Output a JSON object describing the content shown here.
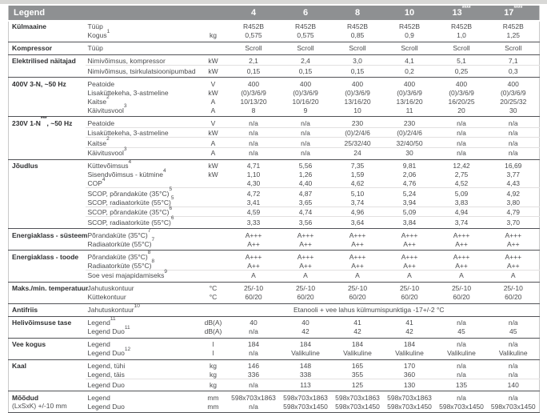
{
  "table": {
    "title": "Legend",
    "columns": [
      "4",
      "6",
      "8",
      "10",
      "13^****^",
      "17^****^"
    ],
    "sections": [
      {
        "group": "Külmaaine",
        "rows": [
          {
            "param": "Tüüp",
            "unit": "",
            "values": [
              "R452B",
              "R452B",
              "R452B",
              "R452B",
              "R452B",
              "R452B"
            ]
          },
          {
            "param": "Kogus^1^",
            "unit": "kg",
            "values": [
              "0,575",
              "0,575",
              "0,85",
              "0,9",
              "1,0",
              "1,25"
            ]
          }
        ]
      },
      {
        "group": "Kompressor",
        "rows": [
          {
            "param": "Tüüp",
            "unit": "",
            "values": [
              "Scroll",
              "Scroll",
              "Scroll",
              "Scroll",
              "Scroll",
              "Scroll"
            ]
          }
        ]
      },
      {
        "group": "Elektrilised näitajad",
        "rows": [
          {
            "param": "Nimivõimsus, kompressor",
            "unit": "kW",
            "values": [
              "2,1",
              "2,4",
              "3,0",
              "4,1",
              "5,1",
              "7,1"
            ]
          },
          {
            "param": "Nimivõimsus, tsirkulatsioonipumbad",
            "unit": "kW",
            "values": [
              "0,15",
              "0,15",
              "0,15",
              "0,2",
              "0,25",
              "0,3"
            ],
            "sep": true
          }
        ]
      },
      {
        "group": "400V 3-N, ~50 Hz",
        "rows": [
          {
            "param": "Peatoide",
            "unit": "V",
            "values": [
              "400",
              "400",
              "400",
              "400",
              "400",
              "400"
            ]
          },
          {
            "param": "Lisaküttekeha, 3-astmeline",
            "unit": "kW",
            "values": [
              "(0)/3/6/9",
              "(0)/3/6/9",
              "(0)/3/6/9",
              "(0)/3/6/9",
              "(0)/3/6/9",
              "(0)/3/6/9"
            ]
          },
          {
            "param": "Kaitse^2^",
            "unit": "A",
            "values": [
              "10/13/20",
              "10/16/20",
              "13/16/20",
              "13/16/20",
              "16/20/25",
              "20/25/32"
            ]
          },
          {
            "param": "Käivitusvool^3^",
            "unit": "A",
            "values": [
              "8",
              "9",
              "10",
              "11",
              "20",
              "30"
            ]
          }
        ]
      },
      {
        "group": "230V 1-N^***^, ~50 Hz",
        "rows": [
          {
            "param": "Peatoide",
            "unit": "V",
            "values": [
              "n/a",
              "n/a",
              "230",
              "230",
              "n/a",
              "n/a"
            ]
          },
          {
            "param": "Lisaküttekeha, 3-astmeline",
            "unit": "kW",
            "values": [
              "n/a",
              "n/a",
              "(0)/2/4/6",
              "(0)/2/4/6",
              "n/a",
              "n/a"
            ],
            "sep": true
          },
          {
            "param": "Kaitse^2^",
            "unit": "A",
            "values": [
              "n/a",
              "n/a",
              "25/32/40",
              "32/40/50",
              "n/a",
              "n/a"
            ],
            "sep": true
          },
          {
            "param": "Käivitusvool^3^",
            "unit": "A",
            "values": [
              "n/a",
              "n/a",
              "24",
              "30",
              "n/a",
              "n/a"
            ],
            "sep": true
          }
        ]
      },
      {
        "group": "Jõudlus",
        "rows": [
          {
            "param": "Küttevõimsus^4^",
            "unit": "kW",
            "values": [
              "4,71",
              "5,56",
              "7,35",
              "9,81",
              "12,42",
              "16,69"
            ]
          },
          {
            "param": "Sisendvõimsus - kütmine^4^",
            "unit": "kW",
            "values": [
              "1,10",
              "1,26",
              "1,59",
              "2,06",
              "2,75",
              "3,77"
            ]
          },
          {
            "param": "COP^4^",
            "unit": "",
            "values": [
              "4,30",
              "4,40",
              "4,62",
              "4,76",
              "4,52",
              "4,43"
            ]
          },
          {
            "param": "SCOP, põrandaküte (35°C)^5^",
            "unit": "",
            "values": [
              "4,72",
              "4,87",
              "5,10",
              "5,24",
              "5,09",
              "4,92"
            ],
            "sep": true
          },
          {
            "param": "SCOP, radiaatorküte (55°C)^5^",
            "unit": "",
            "values": [
              "3,41",
              "3,65",
              "3,74",
              "3,94",
              "3,83",
              "3,80"
            ]
          },
          {
            "param": "SCOP, põrandaküte (35°C)^6^",
            "unit": "",
            "values": [
              "4,59",
              "4,74",
              "4,96",
              "5,09",
              "4,94",
              "4,79"
            ],
            "sep": true
          },
          {
            "param": "SCOP, radiaatorküte (55°C)^6^",
            "unit": "",
            "values": [
              "3,33",
              "3,56",
              "3,64",
              "3,84",
              "3,74",
              "3,70"
            ],
            "sep": true
          }
        ]
      },
      {
        "group": "Energiaklass - süsteem",
        "rows": [
          {
            "param": "Põrandaküte (35°C)^7^",
            "unit": "",
            "values": [
              "A+++",
              "A+++",
              "A+++",
              "A+++",
              "A+++",
              "A+++"
            ]
          },
          {
            "param": "Radiaatorküte (55°C)^7^",
            "unit": "",
            "values": [
              "A++",
              "A++",
              "A++",
              "A++",
              "A++",
              "A++"
            ]
          }
        ]
      },
      {
        "group": "Energiaklass - toode",
        "rows": [
          {
            "param": "Põrandaküte (35°C)^8^",
            "unit": "",
            "values": [
              "A+++",
              "A+++",
              "A+++",
              "A+++",
              "A+++",
              "A+++"
            ]
          },
          {
            "param": "Radiaatorküte (55°C)^8^",
            "unit": "",
            "values": [
              "A++",
              "A++",
              "A++",
              "A++",
              "A++",
              "A++"
            ]
          },
          {
            "param": "Soe vesi majapidamiseks^9^",
            "unit": "",
            "values": [
              "A",
              "A",
              "A",
              "A",
              "A",
              "A"
            ],
            "sep": true
          }
        ]
      },
      {
        "group": "Maks./min. temperatuur",
        "rows": [
          {
            "param": "Jahutuskontuur",
            "unit": "°C",
            "values": [
              "25/-10",
              "25/-10",
              "25/-10",
              "25/-10",
              "25/-10",
              "25/-10"
            ]
          },
          {
            "param": "Küttekontuur",
            "unit": "°C",
            "values": [
              "60/20",
              "60/20",
              "60/20",
              "60/20",
              "60/20",
              "60/20"
            ]
          }
        ]
      },
      {
        "group": "Antifriis",
        "rows": [
          {
            "param": "Jahutuskontuur^10^",
            "unit": "",
            "span": "Etanooli + vee lahus külmumispunktiga -17+/-2 °C"
          }
        ]
      },
      {
        "group": "Helivõimsuse tase",
        "rows": [
          {
            "param": "Legend^11^",
            "unit": "dB(A)",
            "values": [
              "40",
              "40",
              "41",
              "41",
              "n/a",
              "n/a"
            ]
          },
          {
            "param": "Legend Duo^11^",
            "unit": "dB(A)",
            "values": [
              "n/a",
              "42",
              "42",
              "42",
              "45",
              "45"
            ]
          }
        ]
      },
      {
        "group": "Vee kogus",
        "rows": [
          {
            "param": "Legend",
            "unit": "l",
            "values": [
              "184",
              "184",
              "184",
              "184",
              "n/a",
              "n/a"
            ]
          },
          {
            "param": "Legend Duo^12^",
            "unit": "l",
            "values": [
              "n/a",
              "Valikuline",
              "Valikuline",
              "Valikuline",
              "Valikuline",
              "Valikuline"
            ]
          }
        ]
      },
      {
        "group": "Kaal",
        "rows": [
          {
            "param": "Legend, tühi",
            "unit": "kg",
            "values": [
              "146",
              "148",
              "165",
              "170",
              "n/a",
              "n/a"
            ]
          },
          {
            "param": "Legend, täis",
            "unit": "kg",
            "values": [
              "336",
              "338",
              "355",
              "360",
              "n/a",
              "n/a"
            ]
          },
          {
            "param": "Legend Duo",
            "unit": "kg",
            "values": [
              "n/a",
              "113",
              "125",
              "130",
              "135",
              "140"
            ],
            "sep": true
          }
        ]
      },
      {
        "group": "Mõõdud\n(LxSxK) +/-10 mm",
        "rows": [
          {
            "param": "Legend",
            "unit": "mm",
            "values": [
              "598x703x1863",
              "598x703x1863",
              "598x703x1863",
              "598x703x1863",
              "n/a",
              "n/a"
            ]
          },
          {
            "param": "Legend Duo",
            "unit": "mm",
            "values": [
              "n/a",
              "598x703x1450",
              "598x703x1450",
              "598x703x1450",
              "598x703x1450",
              "598x703x1450"
            ]
          }
        ]
      }
    ]
  }
}
